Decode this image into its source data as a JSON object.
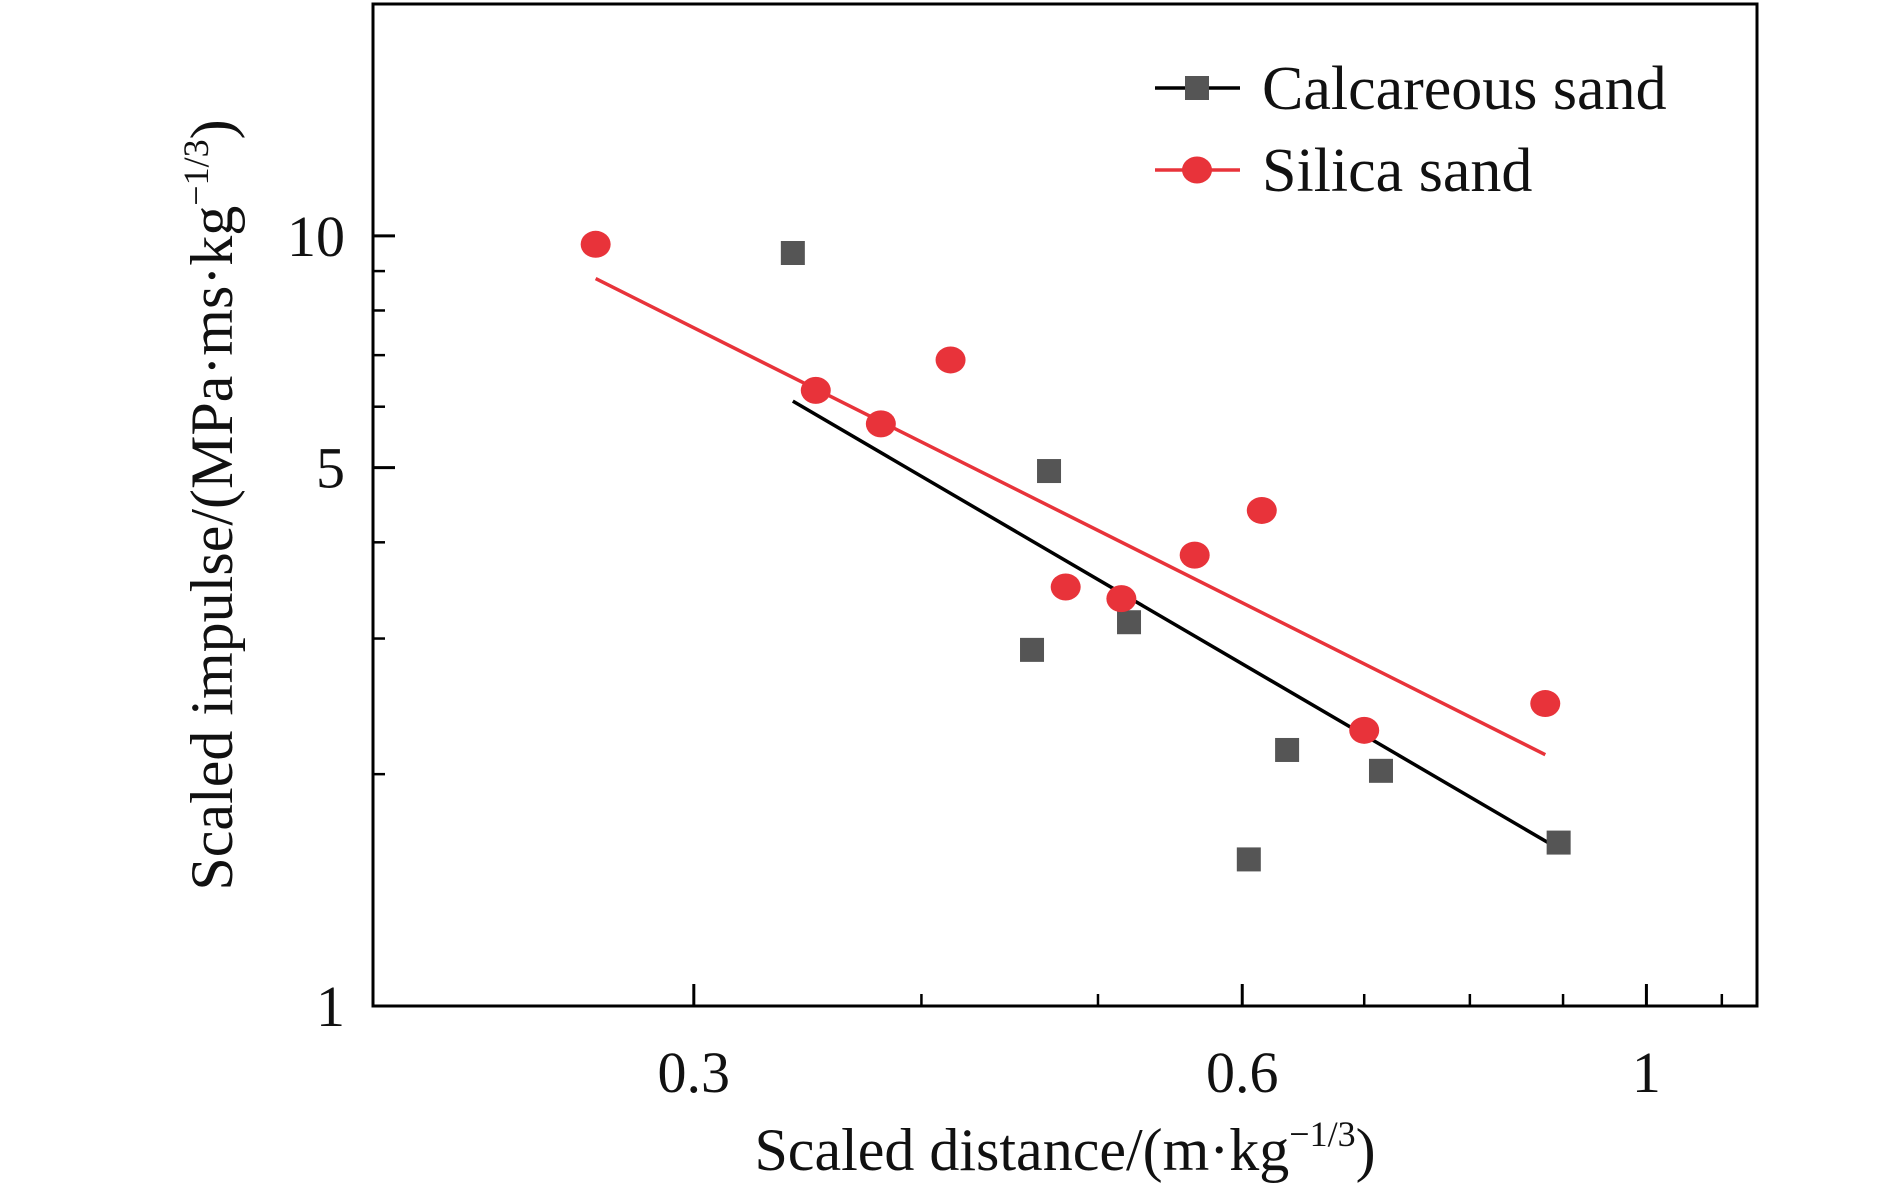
{
  "chart_data": {
    "type": "scatter",
    "x_scale": "log",
    "y_scale": "log",
    "xlim": [
      0.2,
      1.15
    ],
    "ylim": [
      1,
      20
    ],
    "grid": false,
    "legend_position": "top-right",
    "xlabel": {
      "main": "Scaled distance/(m·kg",
      "sup": "−1/3",
      "end": ")"
    },
    "ylabel": {
      "main": "Scaled impulse/(MPa·ms·kg",
      "sup": "−1/3",
      "end": ")"
    },
    "x_ticks": [
      {
        "value": 0.3,
        "label": "0.3"
      },
      {
        "value": 0.6,
        "label": "0.6"
      },
      {
        "value": 1,
        "label": "1"
      }
    ],
    "x_minor_ticks": [
      0.4,
      0.5,
      0.7,
      0.8,
      0.9,
      1.1
    ],
    "y_ticks": [
      {
        "value": 1,
        "label": "1"
      },
      {
        "value": 5,
        "label": "5"
      },
      {
        "value": 10,
        "label": "10"
      }
    ],
    "y_minor_ticks": [
      2,
      3,
      4,
      6,
      7,
      8,
      9
    ],
    "series": [
      {
        "name": "Calcareous sand",
        "color": "#555555",
        "line_color": "#000000",
        "marker": "square",
        "points": [
          {
            "x": 0.34,
            "y": 9.5
          },
          {
            "x": 0.46,
            "y": 2.9
          },
          {
            "x": 0.47,
            "y": 4.95
          },
          {
            "x": 0.52,
            "y": 3.15
          },
          {
            "x": 0.605,
            "y": 1.55
          },
          {
            "x": 0.635,
            "y": 2.15
          },
          {
            "x": 0.715,
            "y": 2.02
          },
          {
            "x": 0.895,
            "y": 1.63
          }
        ],
        "fit": [
          {
            "x": 0.34,
            "y": 6.1
          },
          {
            "x": 0.895,
            "y": 1.6
          }
        ]
      },
      {
        "name": "Silica sand",
        "color": "#e8333a",
        "line_color": "#e8333a",
        "marker": "circle",
        "points": [
          {
            "x": 0.265,
            "y": 9.75
          },
          {
            "x": 0.35,
            "y": 6.3
          },
          {
            "x": 0.38,
            "y": 5.7
          },
          {
            "x": 0.415,
            "y": 6.9
          },
          {
            "x": 0.48,
            "y": 3.5
          },
          {
            "x": 0.515,
            "y": 3.38
          },
          {
            "x": 0.565,
            "y": 3.85
          },
          {
            "x": 0.615,
            "y": 4.4
          },
          {
            "x": 0.7,
            "y": 2.28
          },
          {
            "x": 0.88,
            "y": 2.47
          }
        ],
        "fit": [
          {
            "x": 0.265,
            "y": 8.8
          },
          {
            "x": 0.88,
            "y": 2.12
          }
        ]
      }
    ]
  }
}
